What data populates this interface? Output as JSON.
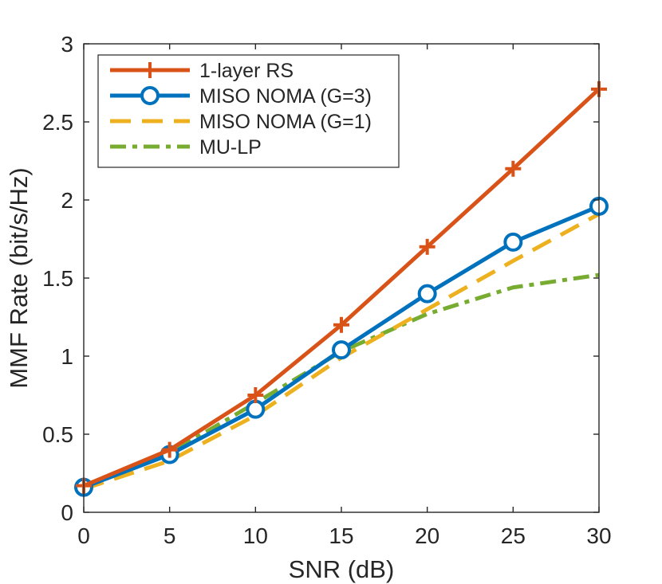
{
  "chart_data": {
    "type": "line",
    "title": "",
    "xlabel": "SNR (dB)",
    "ylabel": "MMF Rate (bit/s/Hz)",
    "xlim": [
      0,
      30
    ],
    "ylim": [
      0,
      3
    ],
    "x": [
      0,
      5,
      10,
      15,
      20,
      25,
      30
    ],
    "x_ticks": [
      "0",
      "5",
      "10",
      "15",
      "20",
      "25",
      "30"
    ],
    "y_ticks": [
      "0",
      "0.5",
      "1",
      "1.5",
      "2",
      "2.5",
      "3"
    ],
    "grid": false,
    "legend_position": "top-left",
    "series": [
      {
        "name": "1-layer RS",
        "color": "#D95319",
        "style": "solid",
        "marker": "plus",
        "values": [
          0.17,
          0.4,
          0.75,
          1.2,
          1.7,
          2.2,
          2.71
        ]
      },
      {
        "name": "MISO NOMA (G=3)",
        "color": "#0072BD",
        "style": "solid",
        "marker": "circle",
        "values": [
          0.16,
          0.37,
          0.66,
          1.04,
          1.4,
          1.73,
          1.96
        ]
      },
      {
        "name": "MISO NOMA (G=1)",
        "color": "#EDB120",
        "style": "dashed",
        "marker": "none",
        "values": [
          0.15,
          0.33,
          0.62,
          0.99,
          1.3,
          1.61,
          1.91
        ]
      },
      {
        "name": "MU-LP",
        "color": "#77AC30",
        "style": "dashdot",
        "marker": "none",
        "values": [
          0.17,
          0.38,
          0.7,
          1.03,
          1.27,
          1.44,
          1.52
        ]
      }
    ]
  }
}
